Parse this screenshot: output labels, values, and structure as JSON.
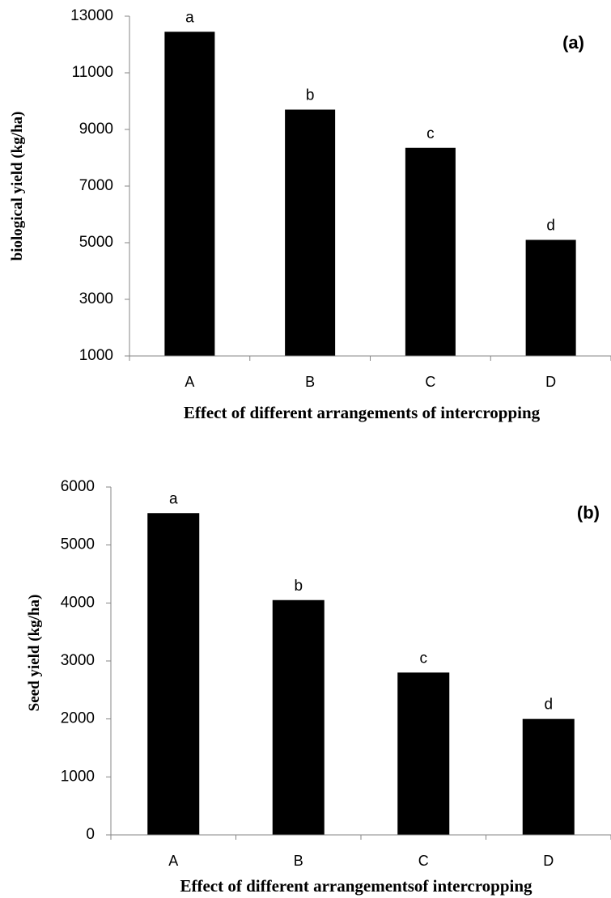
{
  "chart_data": [
    {
      "type": "bar",
      "panel_label": "(a)",
      "categories": [
        "A",
        "B",
        "C",
        "D"
      ],
      "values": [
        12450,
        9700,
        8350,
        5100
      ],
      "bar_labels": [
        "a",
        "b",
        "c",
        "d"
      ],
      "yticks": [
        1000,
        3000,
        5000,
        7000,
        9000,
        11000,
        13000
      ],
      "ylim": [
        1000,
        13000
      ],
      "xlabel": "Effect of different  arrangements of intercropping",
      "ylabel": "biological  yield  (kg/ha)",
      "grid": false,
      "bar_color": "#000000"
    },
    {
      "type": "bar",
      "panel_label": "(b)",
      "categories": [
        "A",
        "B",
        "C",
        "D"
      ],
      "values": [
        5550,
        4050,
        2800,
        2000
      ],
      "bar_labels": [
        "a",
        "b",
        "c",
        "d"
      ],
      "yticks": [
        0,
        1000,
        2000,
        3000,
        4000,
        5000,
        6000
      ],
      "ylim": [
        0,
        6000
      ],
      "xlabel": "Effect of different  arrangementsof intercropping",
      "ylabel": "Seed yield  (kg/ha)",
      "grid": false,
      "bar_color": "#000000"
    }
  ]
}
